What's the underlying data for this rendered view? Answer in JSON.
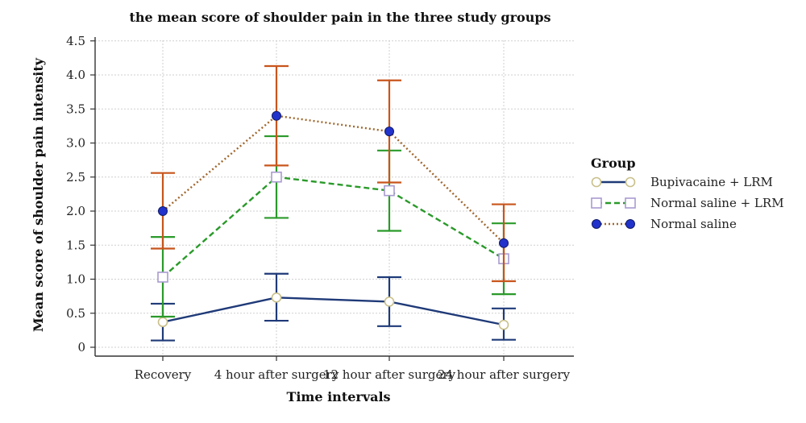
{
  "chart_data": {
    "type": "line",
    "title": "the mean score of shoulder pain in the three study groups",
    "xlabel": "Time intervals",
    "ylabel": "Mean score of shoulder pain intensity",
    "categories": [
      "Recovery",
      "4 hour after surgery",
      "12 hour after surgery",
      "24 hour after surgery"
    ],
    "ylim": [
      0,
      4.5
    ],
    "yticks": [
      {
        "value": 0,
        "label": "0"
      },
      {
        "value": 0.5,
        "label": "0.5"
      },
      {
        "value": 1.0,
        "label": "1.0"
      },
      {
        "value": 1.5,
        "label": "1.5"
      },
      {
        "value": 2.0,
        "label": "2.0"
      },
      {
        "value": 2.5,
        "label": "2.5"
      },
      {
        "value": 3.0,
        "label": "3.0"
      },
      {
        "value": 3.5,
        "label": "3.5"
      },
      {
        "value": 4.0,
        "label": "4.0"
      },
      {
        "value": 4.5,
        "label": "4.5"
      }
    ],
    "grid": true,
    "legend_title": "Group",
    "legend_position": "right",
    "series": [
      {
        "name": "Bupivacaine + LRM",
        "color": "#1f3a78",
        "error_color": "#1f3a78",
        "line_style": "solid",
        "marker": "circle-open",
        "marker_color": "#c9c08a",
        "values": [
          0.37,
          0.73,
          0.67,
          0.33
        ],
        "err_low": [
          0.1,
          0.39,
          0.31,
          0.11
        ],
        "err_high": [
          0.64,
          1.08,
          1.03,
          0.57
        ]
      },
      {
        "name": "Normal saline + LRM",
        "color": "#2a9a2a",
        "error_color": "#2a9a2a",
        "line_style": "dashed",
        "marker": "square-open",
        "marker_color": "#a99bd0",
        "values": [
          1.03,
          2.5,
          2.3,
          1.3
        ],
        "err_low": [
          0.45,
          1.9,
          1.71,
          0.78
        ],
        "err_high": [
          1.62,
          3.1,
          2.89,
          1.82
        ]
      },
      {
        "name": "Normal saline",
        "color": "#a0662c",
        "error_color": "#c8551c",
        "line_style": "dotted",
        "marker": "circle-filled",
        "marker_color": "#2233cc",
        "values": [
          2.0,
          3.4,
          3.17,
          1.53
        ],
        "err_low": [
          1.45,
          2.67,
          2.42,
          0.97
        ],
        "err_high": [
          2.56,
          4.13,
          3.92,
          2.1
        ]
      }
    ]
  }
}
